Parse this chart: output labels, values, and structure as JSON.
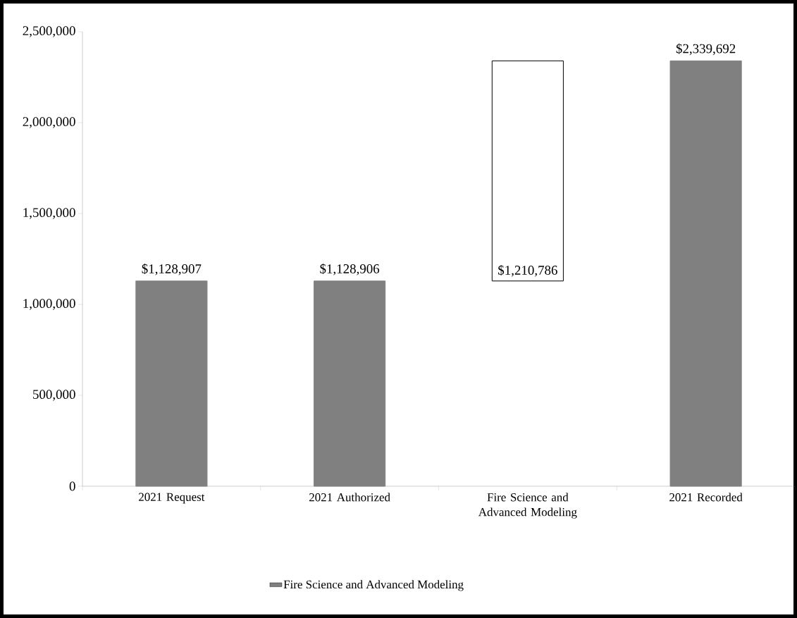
{
  "chart_data": {
    "type": "bar",
    "categories": [
      "2021 Request",
      "2021 Authorized",
      "Fire Science and Advanced Modeling",
      "2021 Recorded"
    ],
    "series": [
      {
        "name": "Fire Science and Advanced Modeling",
        "color": "#808080",
        "colors": [
          "#808080",
          "#808080",
          "#ffffff",
          "#808080"
        ],
        "values": [
          1128907,
          1128906,
          1210786,
          2339692
        ],
        "base": [
          0,
          0,
          1128906,
          0
        ],
        "value_labels": [
          "$1,128,907",
          "$1,128,906",
          "$1,210,786",
          "$2,339,692"
        ]
      }
    ],
    "ylim": [
      0,
      2500000
    ],
    "yticks": [
      0,
      {
        "value": 500000,
        "label": "500,000"
      },
      {
        "value": 1000000,
        "label": "1,000,000"
      },
      {
        "value": 1500000,
        "label": "1,500,000"
      },
      {
        "value": 2000000,
        "label": "2,000,000"
      },
      {
        "value": 2500000,
        "label": "2,500,000"
      }
    ],
    "legend": "bottom",
    "grid": false
  }
}
